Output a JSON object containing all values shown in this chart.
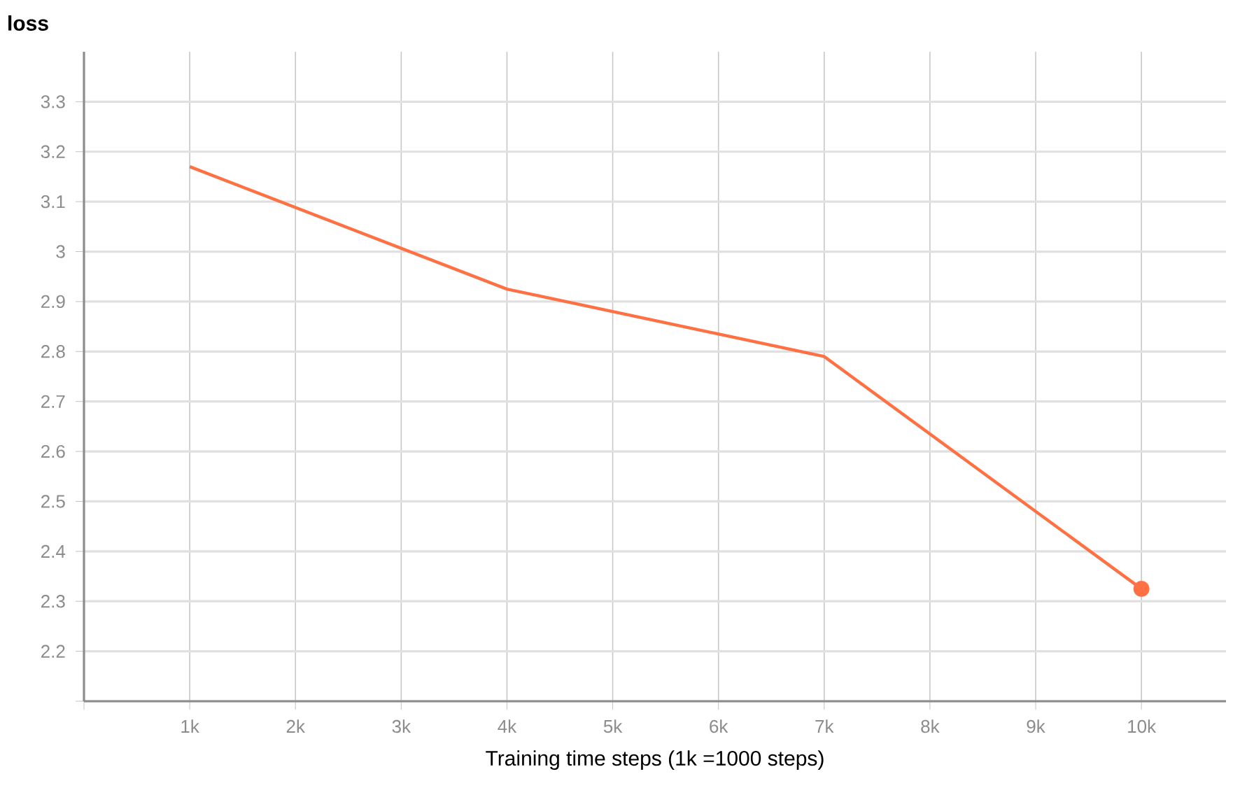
{
  "chart_data": {
    "type": "line",
    "ylabel": "loss",
    "xlabel": "Training time steps (1k =1000 steps)",
    "x": [
      1,
      4,
      7,
      10
    ],
    "series": [
      {
        "color": "#ff7043",
        "values": [
          3.17,
          2.925,
          2.79,
          2.325
        ]
      },
      {
        "type": "scatter",
        "color": "#ff7043",
        "x": [
          10
        ],
        "values": [
          2.325
        ]
      }
    ],
    "xlim": [
      0,
      10.8
    ],
    "xticks": [
      {
        "value": 0,
        "label": null
      },
      {
        "value": 1,
        "label": "1k"
      },
      {
        "value": 2,
        "label": "2k"
      },
      {
        "value": 3,
        "label": "3k"
      },
      {
        "value": 4,
        "label": "4k"
      },
      {
        "value": 5,
        "label": "5k"
      },
      {
        "value": 6,
        "label": "6k"
      },
      {
        "value": 7,
        "label": "7k"
      },
      {
        "value": 8,
        "label": "8k"
      },
      {
        "value": 9,
        "label": "9k"
      },
      {
        "value": 10,
        "label": "10k"
      }
    ],
    "ylim": [
      2.1,
      3.4
    ],
    "yticks": [
      {
        "value": 2.1,
        "label": null
      },
      2.2,
      2.3,
      2.4,
      2.5,
      2.6,
      2.7,
      2.8,
      2.9,
      3,
      3.1,
      3.2,
      3.3
    ],
    "grid": true,
    "line_style": "solid"
  }
}
